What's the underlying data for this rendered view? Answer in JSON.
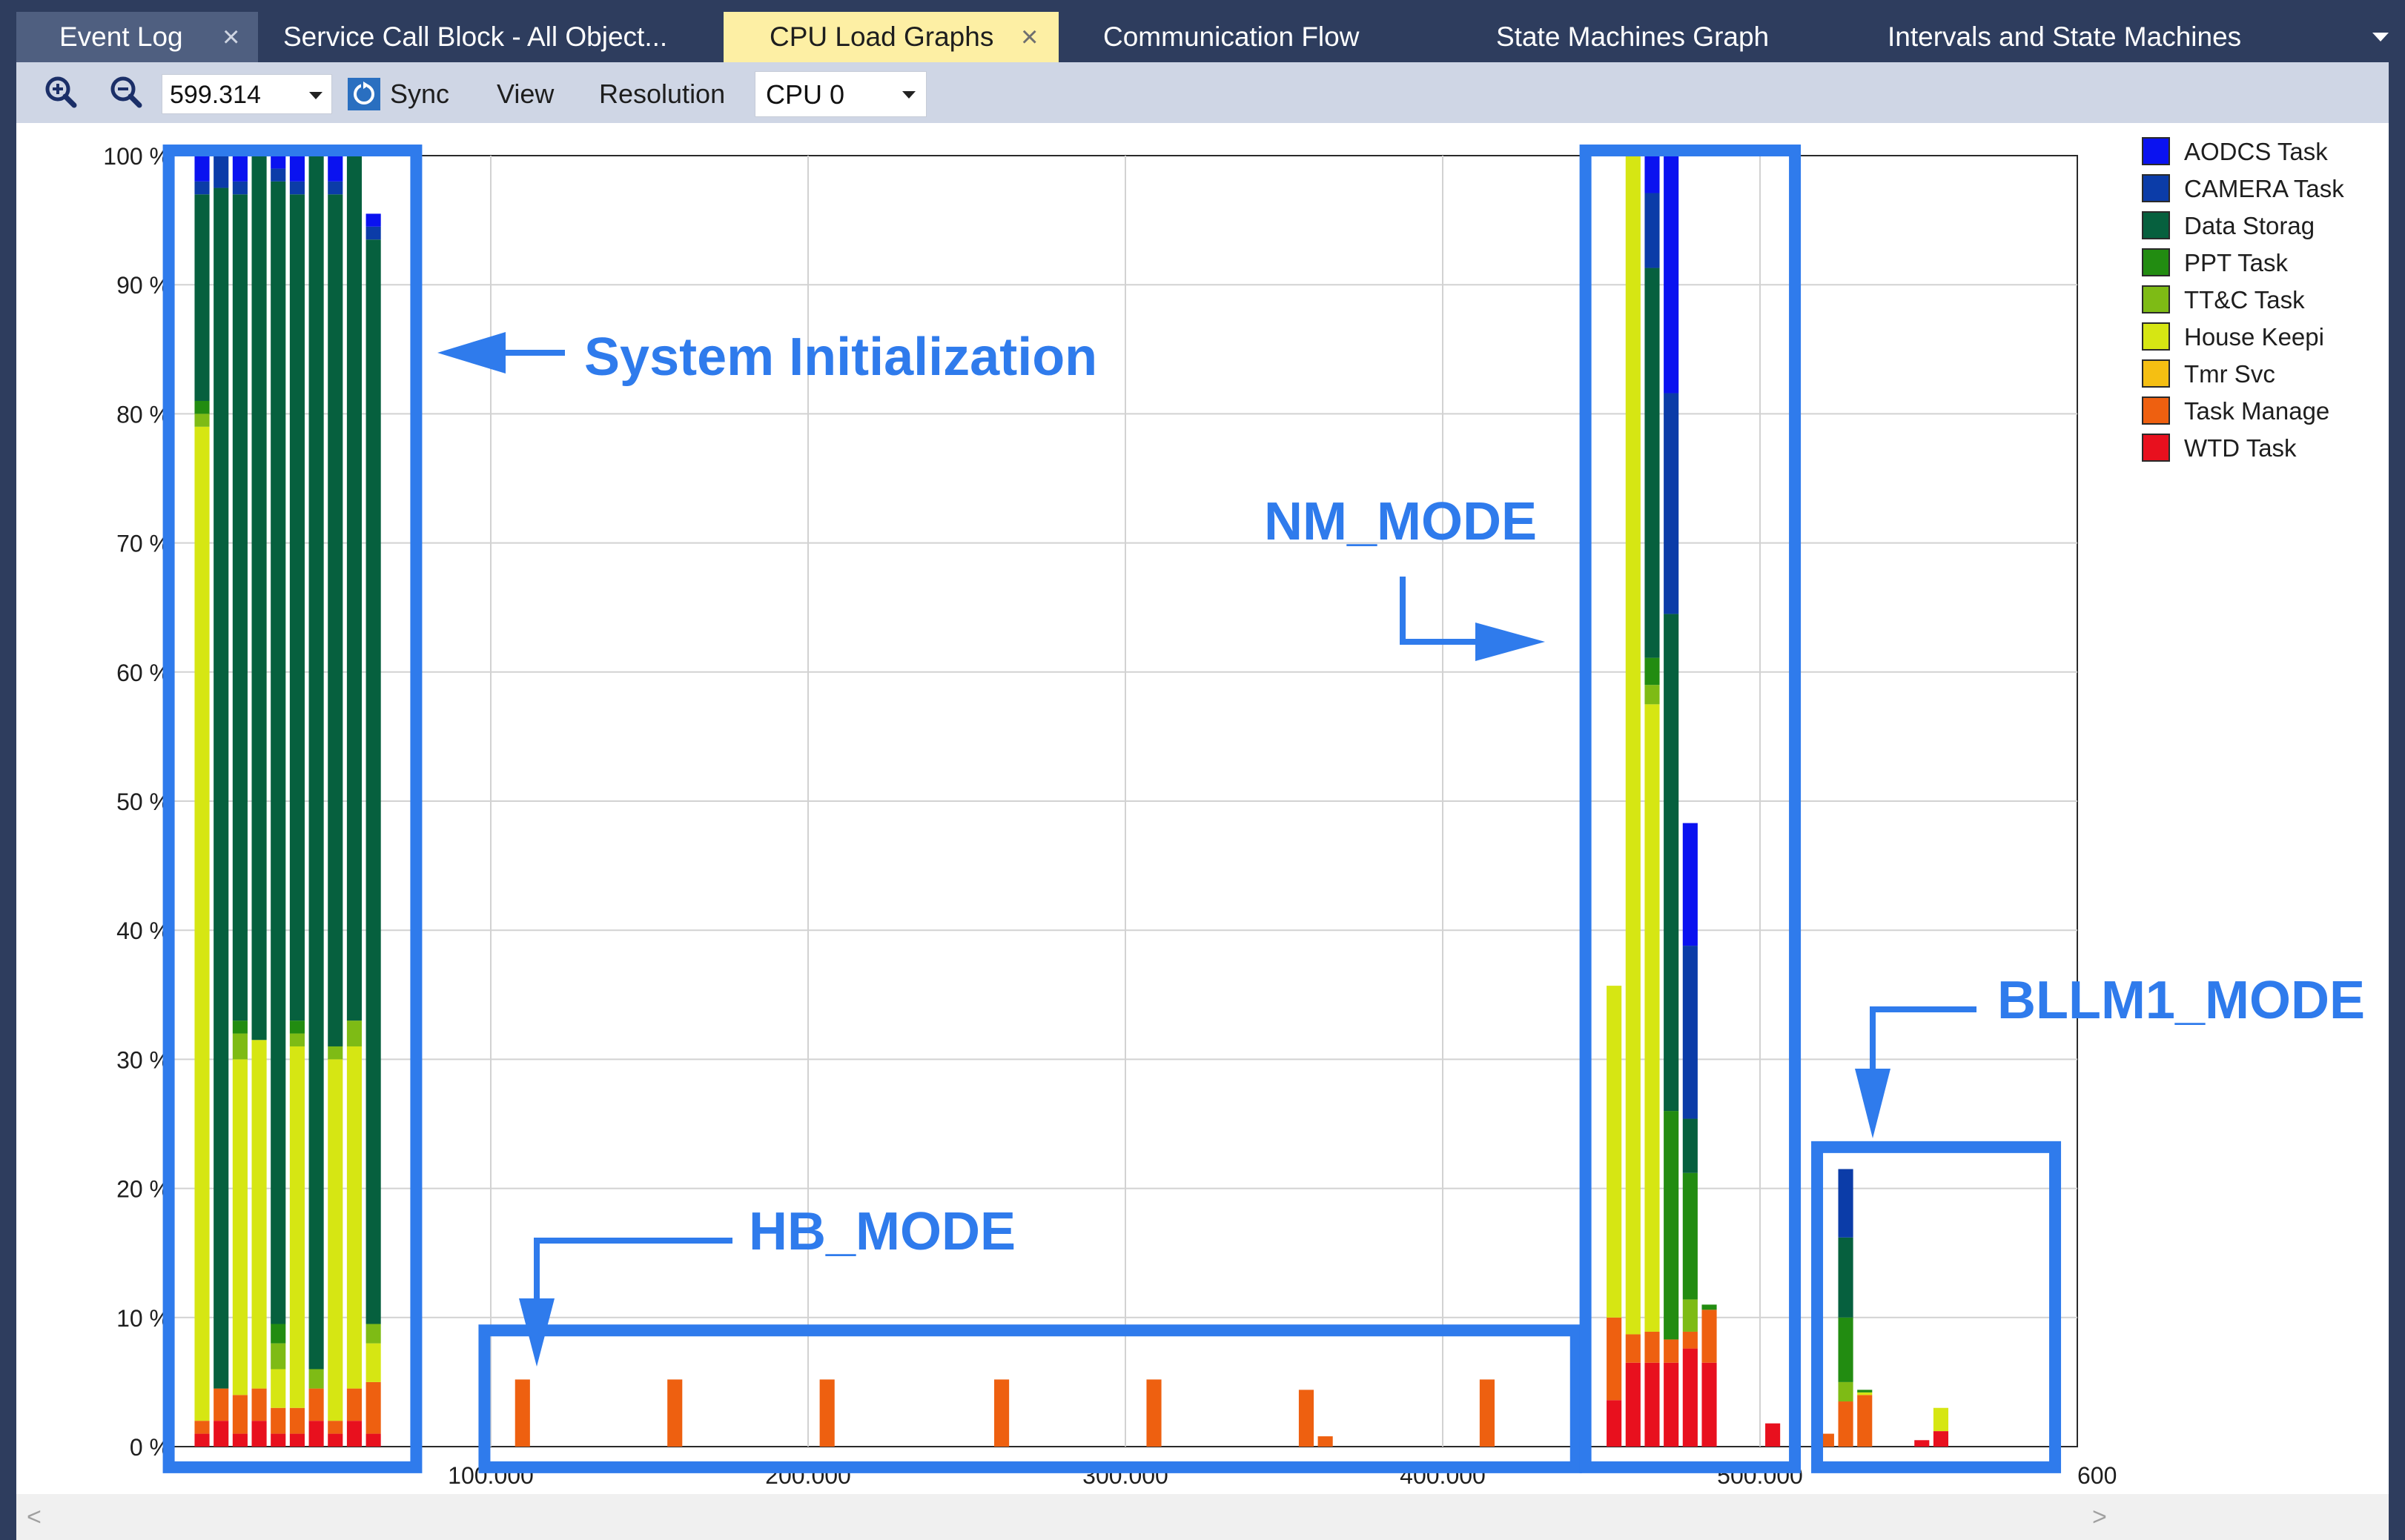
{
  "tabs": [
    {
      "label": "Event Log",
      "closable": true
    },
    {
      "label": "Service Call Block - All Object...",
      "closable": false
    },
    {
      "label": "CPU Load Graphs",
      "closable": true,
      "active": true
    },
    {
      "label": "Communication Flow",
      "closable": false
    },
    {
      "label": "State Machines Graph",
      "closable": false
    },
    {
      "label": "Intervals and State Machines",
      "closable": false
    }
  ],
  "toolbar": {
    "zoom_in_icon": "zoom-in-icon",
    "zoom_out_icon": "zoom-out-icon",
    "zoom_value": "599.314",
    "sync_label": "Sync",
    "view_label": "View",
    "resolution_label": "Resolution",
    "cpu_value": "CPU 0"
  },
  "colors": {
    "annotation": "#2f7bec"
  },
  "chart_data": {
    "type": "bar",
    "stacked": true,
    "xlim": [
      0,
      600
    ],
    "ylim": [
      0,
      100
    ],
    "y_ticks": [
      "0 %",
      "10 %",
      "20 %",
      "30 %",
      "40 %",
      "50 %",
      "60 %",
      "70 %",
      "80 %",
      "90 %",
      "100 %"
    ],
    "x_ticks": [
      "100.000",
      "200.000",
      "300.000",
      "400.000",
      "500.000",
      "600"
    ],
    "grid": true,
    "legend_position": "right",
    "series": [
      {
        "name": "AODCS Task",
        "color": "#0a12f0"
      },
      {
        "name": "CAMERA Task",
        "color": "#0b3ca8"
      },
      {
        "name": "Data Storag",
        "color": "#06603e"
      },
      {
        "name": "PPT Task",
        "color": "#228c11"
      },
      {
        "name": "TT&C Task",
        "color": "#7ebb15"
      },
      {
        "name": "House Keepi",
        "color": "#d6e613"
      },
      {
        "name": "Tmr Svc",
        "color": "#f5bf12"
      },
      {
        "name": "Task Manage",
        "color": "#ee6010"
      },
      {
        "name": "WTD Task",
        "color": "#e8101e"
      }
    ],
    "bars": [
      {
        "x": 9,
        "stack": {
          "WTD Task": 1,
          "Task Manage": 1,
          "House Keepi": 77,
          "TT&C Task": 1,
          "PPT Task": 1,
          "Data Storag": 16,
          "CAMERA Task": 1,
          "AODCS Task": 2
        }
      },
      {
        "x": 15,
        "stack": {
          "WTD Task": 2,
          "Task Manage": 2.5,
          "Data Storag": 93,
          "CAMERA Task": 2.5
        }
      },
      {
        "x": 21,
        "stack": {
          "WTD Task": 1,
          "Task Manage": 3,
          "House Keepi": 26,
          "TT&C Task": 2,
          "PPT Task": 1,
          "Data Storag": 64,
          "CAMERA Task": 1,
          "AODCS Task": 2
        }
      },
      {
        "x": 27,
        "stack": {
          "WTD Task": 2,
          "Task Manage": 2.5,
          "House Keepi": 27,
          "Data Storag": 68.5
        }
      },
      {
        "x": 33,
        "stack": {
          "WTD Task": 1,
          "Task Manage": 2,
          "House Keepi": 3,
          "TT&C Task": 2,
          "PPT Task": 1.5,
          "Data Storag": 88.5,
          "CAMERA Task": 1,
          "AODCS Task": 1
        }
      },
      {
        "x": 39,
        "stack": {
          "WTD Task": 1,
          "Task Manage": 2,
          "House Keepi": 28,
          "TT&C Task": 1,
          "PPT Task": 1,
          "Data Storag": 64,
          "CAMERA Task": 1,
          "AODCS Task": 2
        }
      },
      {
        "x": 45,
        "stack": {
          "WTD Task": 2,
          "Task Manage": 2.5,
          "TT&C Task": 1.5,
          "Data Storag": 94
        }
      },
      {
        "x": 51,
        "stack": {
          "WTD Task": 1,
          "Task Manage": 1,
          "House Keepi": 28,
          "TT&C Task": 1,
          "Data Storag": 66,
          "CAMERA Task": 1,
          "AODCS Task": 2
        }
      },
      {
        "x": 57,
        "stack": {
          "WTD Task": 2,
          "Task Manage": 2.5,
          "House Keepi": 26.5,
          "TT&C Task": 2,
          "Data Storag": 67
        }
      },
      {
        "x": 63,
        "stack": {
          "WTD Task": 1,
          "Task Manage": 4,
          "House Keepi": 3,
          "TT&C Task": 1.5,
          "Data Storag": 84,
          "CAMERA Task": 1,
          "AODCS Task": 1
        }
      },
      {
        "x": 110,
        "stack": {
          "Task Manage": 5.2
        }
      },
      {
        "x": 158,
        "stack": {
          "Task Manage": 5.2
        }
      },
      {
        "x": 206,
        "stack": {
          "Task Manage": 5.2
        }
      },
      {
        "x": 261,
        "stack": {
          "Task Manage": 5.2
        }
      },
      {
        "x": 309,
        "stack": {
          "Task Manage": 5.2
        }
      },
      {
        "x": 357,
        "stack": {
          "Task Manage": 4.4
        }
      },
      {
        "x": 363,
        "stack": {
          "Task Manage": 0.8
        }
      },
      {
        "x": 414,
        "stack": {
          "Task Manage": 5.2
        }
      },
      {
        "x": 454,
        "stack": {
          "WTD Task": 3.6,
          "Task Manage": 6.4,
          "House Keepi": 25.7
        }
      },
      {
        "x": 460,
        "stack": {
          "WTD Task": 6.5,
          "Task Manage": 2.2,
          "House Keepi": 91.3
        }
      },
      {
        "x": 466,
        "stack": {
          "WTD Task": 6.5,
          "Task Manage": 2.4,
          "House Keepi": 48.6,
          "TT&C Task": 1.5,
          "PPT Task": 2.1,
          "Data Storag": 30.2,
          "CAMERA Task": 5.8,
          "AODCS Task": 2.9
        }
      },
      {
        "x": 472,
        "stack": {
          "WTD Task": 6.5,
          "Task Manage": 1.8,
          "PPT Task": 17.7,
          "Data Storag": 38.5,
          "CAMERA Task": 17.1,
          "AODCS Task": 18.4
        }
      },
      {
        "x": 478,
        "stack": {
          "WTD Task": 7.6,
          "Task Manage": 1.3,
          "TT&C Task": 2.5,
          "PPT Task": 9.8,
          "Data Storag": 4.2,
          "CAMERA Task": 13.4,
          "AODCS Task": 9.5
        }
      },
      {
        "x": 484,
        "stack": {
          "WTD Task": 6.5,
          "Task Manage": 4.1,
          "PPT Task": 0.4
        }
      },
      {
        "x": 504,
        "stack": {
          "WTD Task": 1.8
        }
      },
      {
        "x": 521,
        "stack": {
          "Task Manage": 1.0
        }
      },
      {
        "x": 527,
        "stack": {
          "Task Manage": 3.5,
          "TT&C Task": 1.5,
          "PPT Task": 5.0,
          "Data Storag": 6.2,
          "CAMERA Task": 5.3
        }
      },
      {
        "x": 533,
        "stack": {
          "Task Manage": 4.0,
          "House Keepi": 0.2,
          "PPT Task": 0.2
        }
      },
      {
        "x": 551,
        "stack": {
          "WTD Task": 0.5
        }
      },
      {
        "x": 557,
        "stack": {
          "WTD Task": 1.2,
          "House Keepi": 1.8
        }
      }
    ],
    "annotations": [
      {
        "label": "System Initialization"
      },
      {
        "label": "NM_MODE"
      },
      {
        "label": "HB_MODE"
      },
      {
        "label": "BLLM1_MODE"
      }
    ]
  }
}
